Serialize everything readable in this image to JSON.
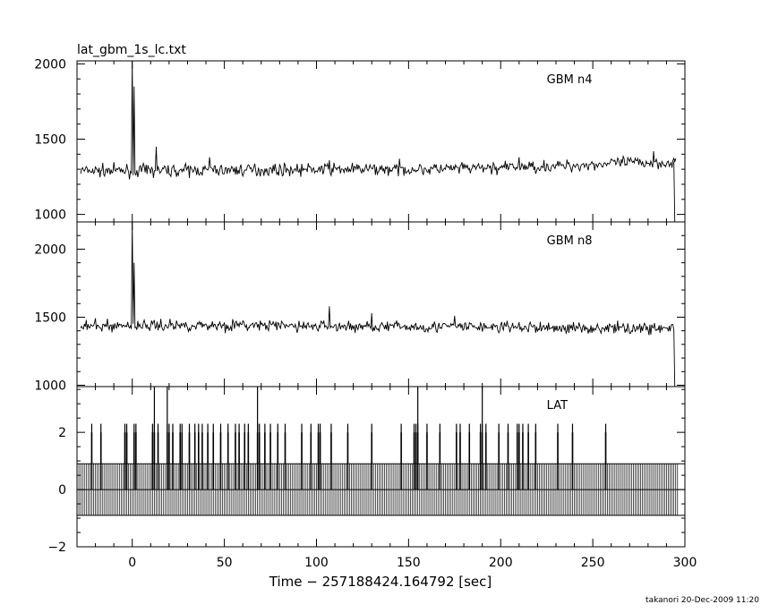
{
  "chart_data": {
    "type": "line",
    "title": "lat_gbm_1s_lc.txt",
    "xlabel": "Time − 257188424.164792 [sec]",
    "xlim": [
      -30,
      300
    ],
    "xticks": [
      0,
      50,
      100,
      150,
      200,
      250,
      300
    ],
    "footer": "takanori 20-Dec-2009 11:20",
    "panels": [
      {
        "name": "GBM n4",
        "ylim": [
          950,
          2020
        ],
        "yticks": [
          1000,
          1500,
          2000
        ],
        "series": {
          "baseline": [
            [
              -28,
              1290
            ],
            [
              0,
              1290
            ],
            [
              60,
              1295
            ],
            [
              120,
              1300
            ],
            [
              160,
              1300
            ],
            [
              200,
              1310
            ],
            [
              240,
              1325
            ],
            [
              270,
              1345
            ],
            [
              295,
              1345
            ]
          ],
          "noise_sd": 28,
          "peaks": [
            [
              0,
              2020
            ],
            [
              1,
              1850
            ],
            [
              13,
              1450
            ],
            [
              42,
              1380
            ],
            [
              107,
              1360
            ],
            [
              145,
              1370
            ],
            [
              210,
              1380
            ],
            [
              283,
              1420
            ]
          ],
          "end": [
            [
              294,
              1345
            ],
            [
              294.5,
              950
            ]
          ]
        }
      },
      {
        "name": "GBM n8",
        "ylim": [
          990,
          2200
        ],
        "yticks": [
          1000,
          1500,
          2000
        ],
        "series": {
          "baseline": [
            [
              -28,
              1430
            ],
            [
              0,
              1440
            ],
            [
              60,
              1440
            ],
            [
              120,
              1430
            ],
            [
              180,
              1430
            ],
            [
              240,
              1420
            ],
            [
              294,
              1420
            ]
          ],
          "noise_sd": 30,
          "peaks": [
            [
              0,
              2200
            ],
            [
              1,
              1900
            ],
            [
              107,
              1580
            ],
            [
              130,
              1530
            ],
            [
              175,
              1510
            ]
          ],
          "end": [
            [
              294,
              1400
            ],
            [
              294.5,
              990
            ]
          ]
        }
      },
      {
        "name": "LAT",
        "ylim": [
          -2,
          3.6
        ],
        "yticks": [
          -2,
          0,
          2
        ],
        "series": {
          "band": [
            -0.9,
            0.9
          ],
          "events_2": [
            -22,
            -17,
            -4,
            -3,
            1,
            2,
            11,
            12,
            14,
            19,
            20,
            22,
            26,
            27,
            31,
            34,
            36,
            38,
            41,
            44,
            48,
            52,
            56,
            58,
            61,
            63,
            68,
            69,
            72,
            75,
            79,
            83,
            92,
            97,
            101,
            102,
            108,
            117,
            130,
            146,
            153,
            154,
            155,
            160,
            167,
            176,
            178,
            183,
            189,
            190,
            192,
            199,
            204,
            209,
            210,
            212,
            215,
            219,
            231,
            239,
            257
          ],
          "events_4": [
            12,
            19,
            68,
            155,
            190
          ]
        }
      }
    ]
  }
}
